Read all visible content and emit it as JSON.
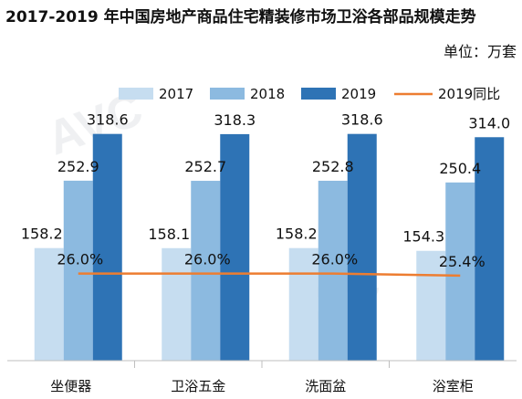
{
  "chart_data": {
    "type": "bar",
    "title": "2017-2019 年中国房地产商品住宅精装修市场卫浴各部品规模走势",
    "unit_label": "单位：万套",
    "categories": [
      "坐便器",
      "卫浴五金",
      "洗面盆",
      "浴室柜"
    ],
    "series": [
      {
        "name": "2017",
        "values": [
          158.2,
          158.1,
          158.2,
          154.3
        ],
        "color": "#c6ddf0"
      },
      {
        "name": "2018",
        "values": [
          252.9,
          252.7,
          252.8,
          250.4
        ],
        "color": "#8cbae0"
      },
      {
        "name": "2019",
        "values": [
          318.6,
          318.3,
          318.6,
          314.0
        ],
        "color": "#2e73b5"
      }
    ],
    "line_series": {
      "name": "2019同比",
      "values": [
        26.0,
        26.0,
        26.0,
        25.4
      ],
      "labels": [
        "26.0%",
        "26.0%",
        "26.0%",
        "25.4%"
      ],
      "color": "#ed7d31"
    },
    "bar_labels": [
      [
        "158.2",
        "158.1",
        "158.2",
        "154.3"
      ],
      [
        "252.9",
        "252.7",
        "252.8",
        "250.4"
      ],
      [
        "318.6",
        "318.3",
        "318.6",
        "314.0"
      ]
    ],
    "ylim": [
      0,
      340
    ],
    "line_ylim": [
      0,
      75
    ],
    "grid": false,
    "legend_position": "top"
  }
}
